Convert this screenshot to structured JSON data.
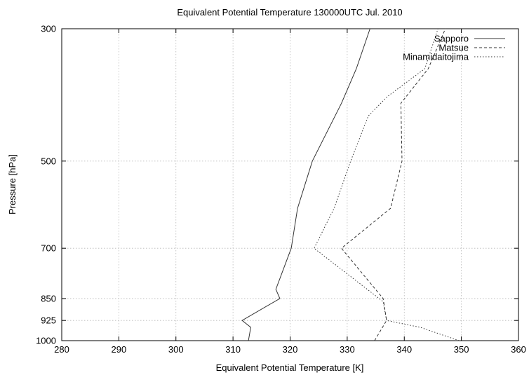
{
  "chart_data": {
    "type": "line",
    "title": "Equivalent Potential Temperature 130000UTC Jul. 2010",
    "xlabel": "Equivalent Potential Temperature [K]",
    "ylabel": "Pressure [hPa]",
    "xlim": [
      280,
      360
    ],
    "ylim": [
      1000,
      300
    ],
    "y_scale": "log",
    "grid": true,
    "legend_position": "top-right",
    "x_ticks": [
      280,
      290,
      300,
      310,
      320,
      330,
      340,
      350,
      360
    ],
    "y_ticks": [
      300,
      500,
      700,
      850,
      925,
      1000
    ],
    "series": [
      {
        "name": "Sapporo",
        "dash": "solid",
        "points": [
          [
            312.7,
            1000
          ],
          [
            313.1,
            950
          ],
          [
            311.6,
            925
          ],
          [
            318.2,
            850
          ],
          [
            317.5,
            820
          ],
          [
            320.2,
            700
          ],
          [
            321.3,
            600
          ],
          [
            323.9,
            500
          ],
          [
            329.0,
            400
          ],
          [
            331.6,
            350
          ],
          [
            334.0,
            300
          ]
        ]
      },
      {
        "name": "Matsue",
        "dash": "dashed",
        "points": [
          [
            334.8,
            1000
          ],
          [
            336.9,
            925
          ],
          [
            336.3,
            850
          ],
          [
            329.0,
            700
          ],
          [
            337.6,
            600
          ],
          [
            339.6,
            500
          ],
          [
            339.4,
            400
          ],
          [
            344.2,
            350
          ],
          [
            347.2,
            300
          ]
        ]
      },
      {
        "name": "Minamidaitojima",
        "dash": "dotted",
        "points": [
          [
            349.6,
            1000
          ],
          [
            342.8,
            950
          ],
          [
            336.9,
            925
          ],
          [
            336.3,
            860
          ],
          [
            324.2,
            700
          ],
          [
            327.7,
            600
          ],
          [
            330.6,
            500
          ],
          [
            333.7,
            420
          ],
          [
            337.0,
            390
          ],
          [
            343.6,
            350
          ],
          [
            345.9,
            300
          ]
        ]
      }
    ]
  }
}
